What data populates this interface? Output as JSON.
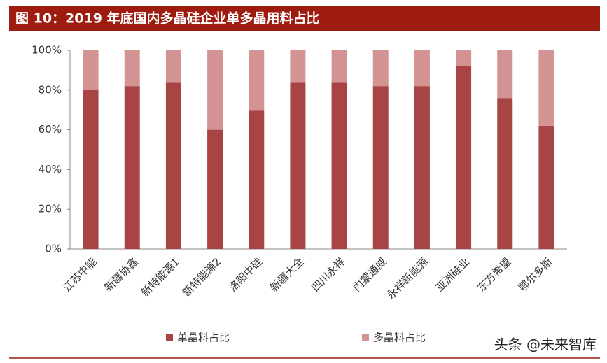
{
  "chart_data": {
    "type": "stacked_bar",
    "title": "图 10：2019 年底国内多晶硅企业单多晶用料占比",
    "categories": [
      "江苏中能",
      "新疆协鑫",
      "新特能源1",
      "新特能源2",
      "洛阳中硅",
      "新疆大全",
      "四川永祥",
      "内蒙通威",
      "永祥新能源",
      "亚洲硅业",
      "东方希望",
      "鄂尔多斯"
    ],
    "series": [
      {
        "name": "单晶料占比",
        "color": "#a84444",
        "values": [
          80,
          82,
          84,
          60,
          70,
          84,
          84,
          82,
          82,
          92,
          76,
          62
        ]
      },
      {
        "name": "多晶料占比",
        "color": "#d39393",
        "values": [
          20,
          18,
          16,
          40,
          30,
          16,
          16,
          18,
          18,
          8,
          24,
          38
        ]
      }
    ],
    "ylim": [
      0,
      100
    ],
    "yticks": [
      {
        "value": 0,
        "label": "0%"
      },
      {
        "value": 20,
        "label": "20%"
      },
      {
        "value": 40,
        "label": "40%"
      },
      {
        "value": 60,
        "label": "60%"
      },
      {
        "value": 80,
        "label": "80%"
      },
      {
        "value": 100,
        "label": "100%"
      }
    ],
    "watermark": "头条 @未来智库"
  }
}
